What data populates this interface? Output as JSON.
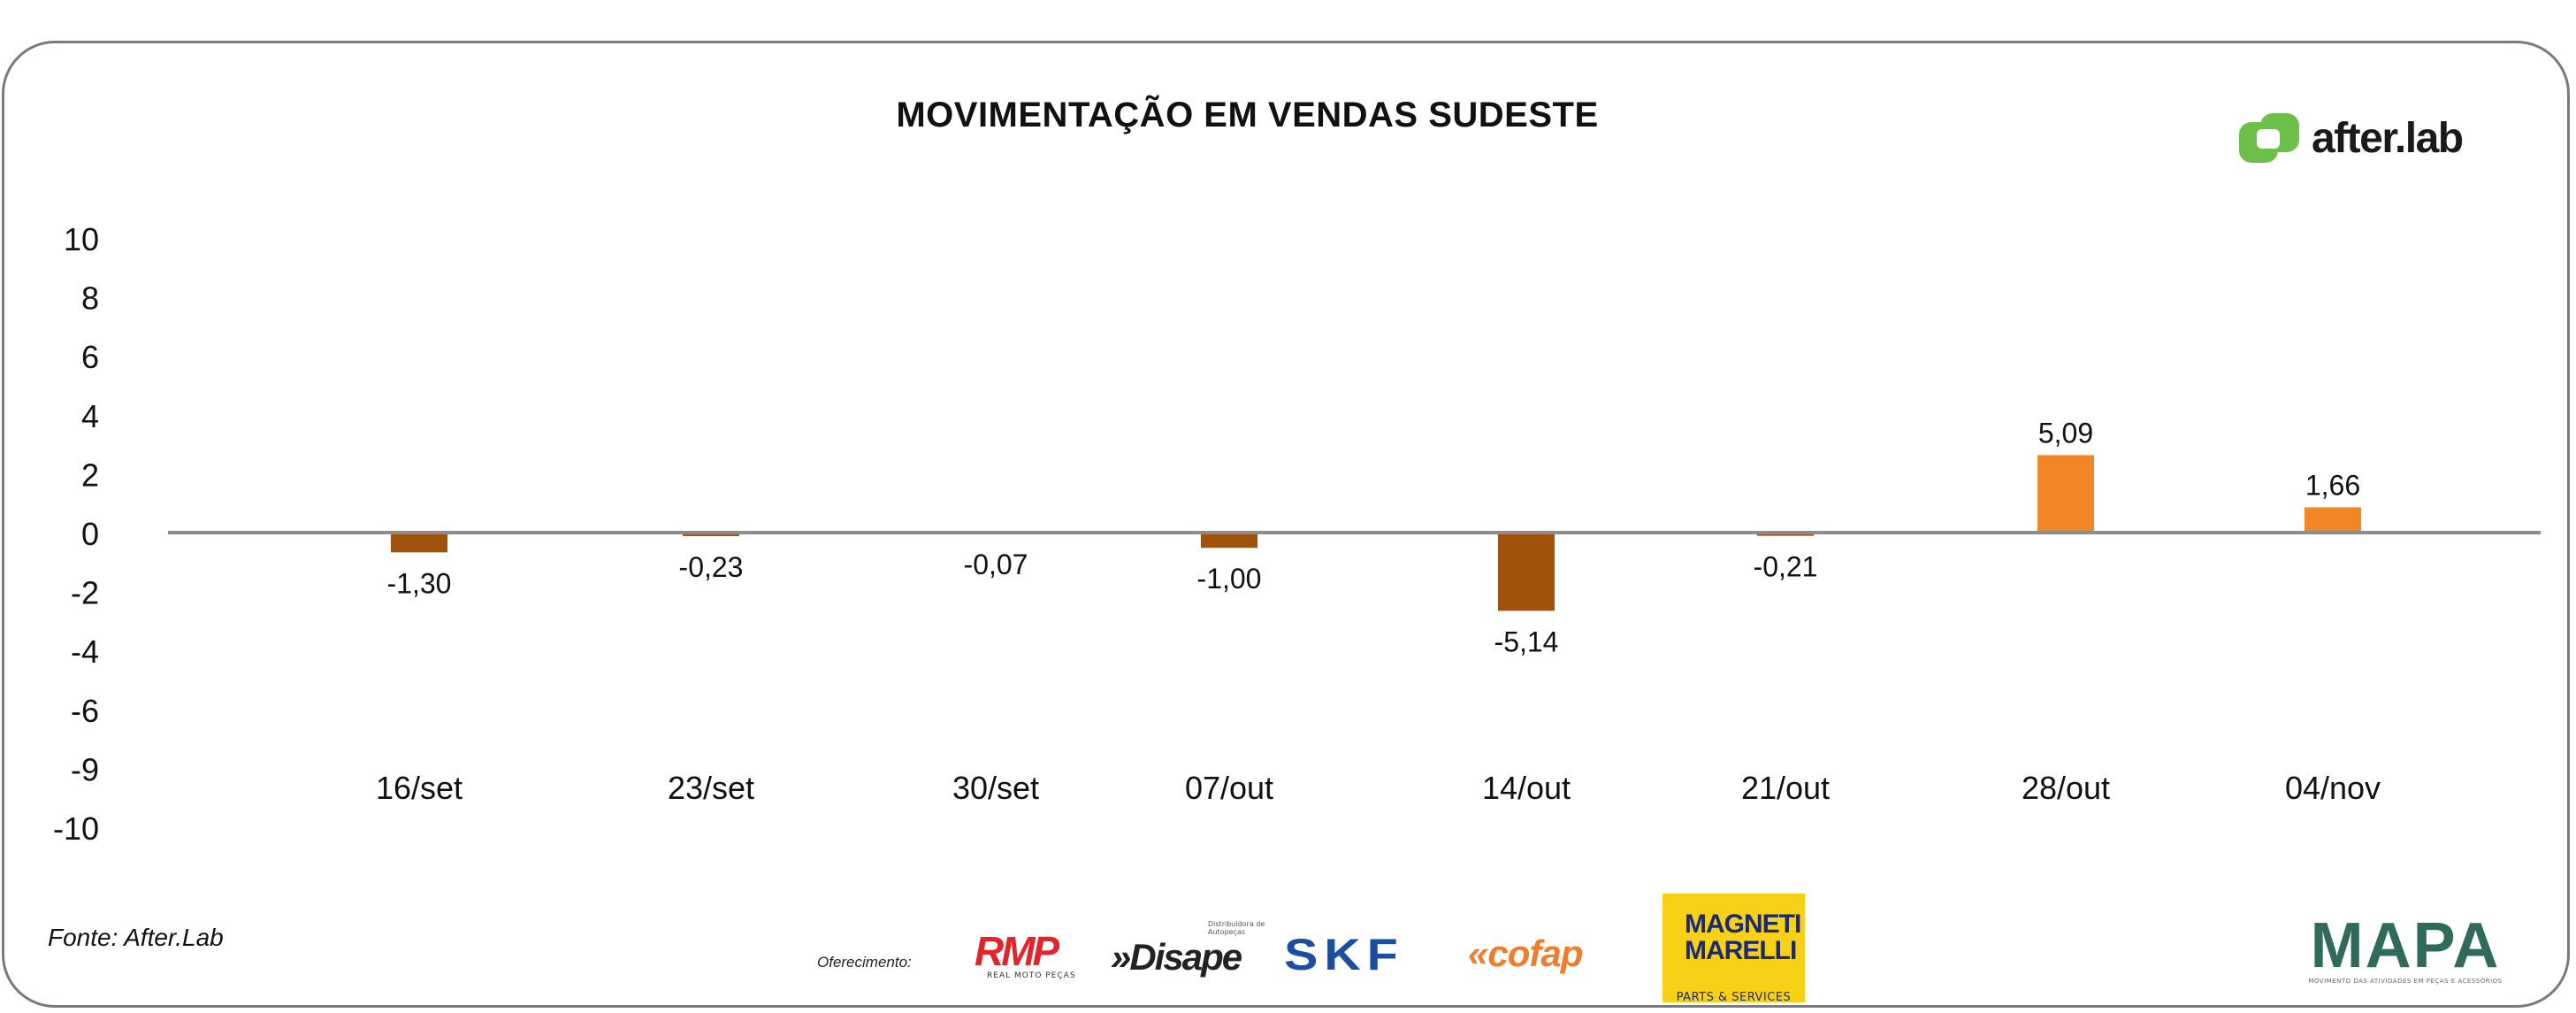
{
  "header": {
    "title": "MOVIMENTAÇÃO EM VENDAS SUDESTE"
  },
  "brand": {
    "name": "after.lab",
    "color": "#6cc04a"
  },
  "footer": {
    "source": "Fonte: After.Lab",
    "offered_by_label": "Oferecimento:",
    "sponsors": [
      {
        "name": "RMP",
        "tagline": "REAL MOTO PEÇAS"
      },
      {
        "name": "»Disape",
        "tagline": "Distribuidora de Autopeças"
      },
      {
        "name": "SKF"
      },
      {
        "name": "cofap"
      },
      {
        "name": "MAGNETI MARELLI",
        "tagline": "PARTS & SERVICES"
      },
      {
        "name": "MAPA",
        "tagline": "MOVIMENTO DAS ATIVIDADES EM PEÇAS E ACESSÓRIOS"
      }
    ]
  },
  "chart_data": {
    "type": "bar",
    "title": "MOVIMENTAÇÃO EM VENDAS SUDESTE",
    "xlabel": "",
    "ylabel": "",
    "categories": [
      "16/set",
      "23/set",
      "30/set",
      "07/out",
      "14/out",
      "21/out",
      "28/out",
      "04/nov"
    ],
    "values": [
      -1.3,
      -0.23,
      -0.07,
      -1.0,
      -5.14,
      -0.21,
      5.09,
      1.66
    ],
    "value_labels": [
      "-1,30",
      "-0,23",
      "-0,07",
      "-1,00",
      "-5,14",
      "-0,21",
      "5,09",
      "1,66"
    ],
    "y_tick_labels": [
      "10",
      "8",
      "6",
      "4",
      "2",
      "0",
      "-2",
      "-4",
      "-6",
      "-9",
      "-10"
    ],
    "ylim": [
      -10,
      10
    ],
    "grid": false,
    "legend": "none",
    "colors": {
      "positive": "#f08625",
      "negative": "#a0520c",
      "axis": "#8c8c8c"
    }
  }
}
